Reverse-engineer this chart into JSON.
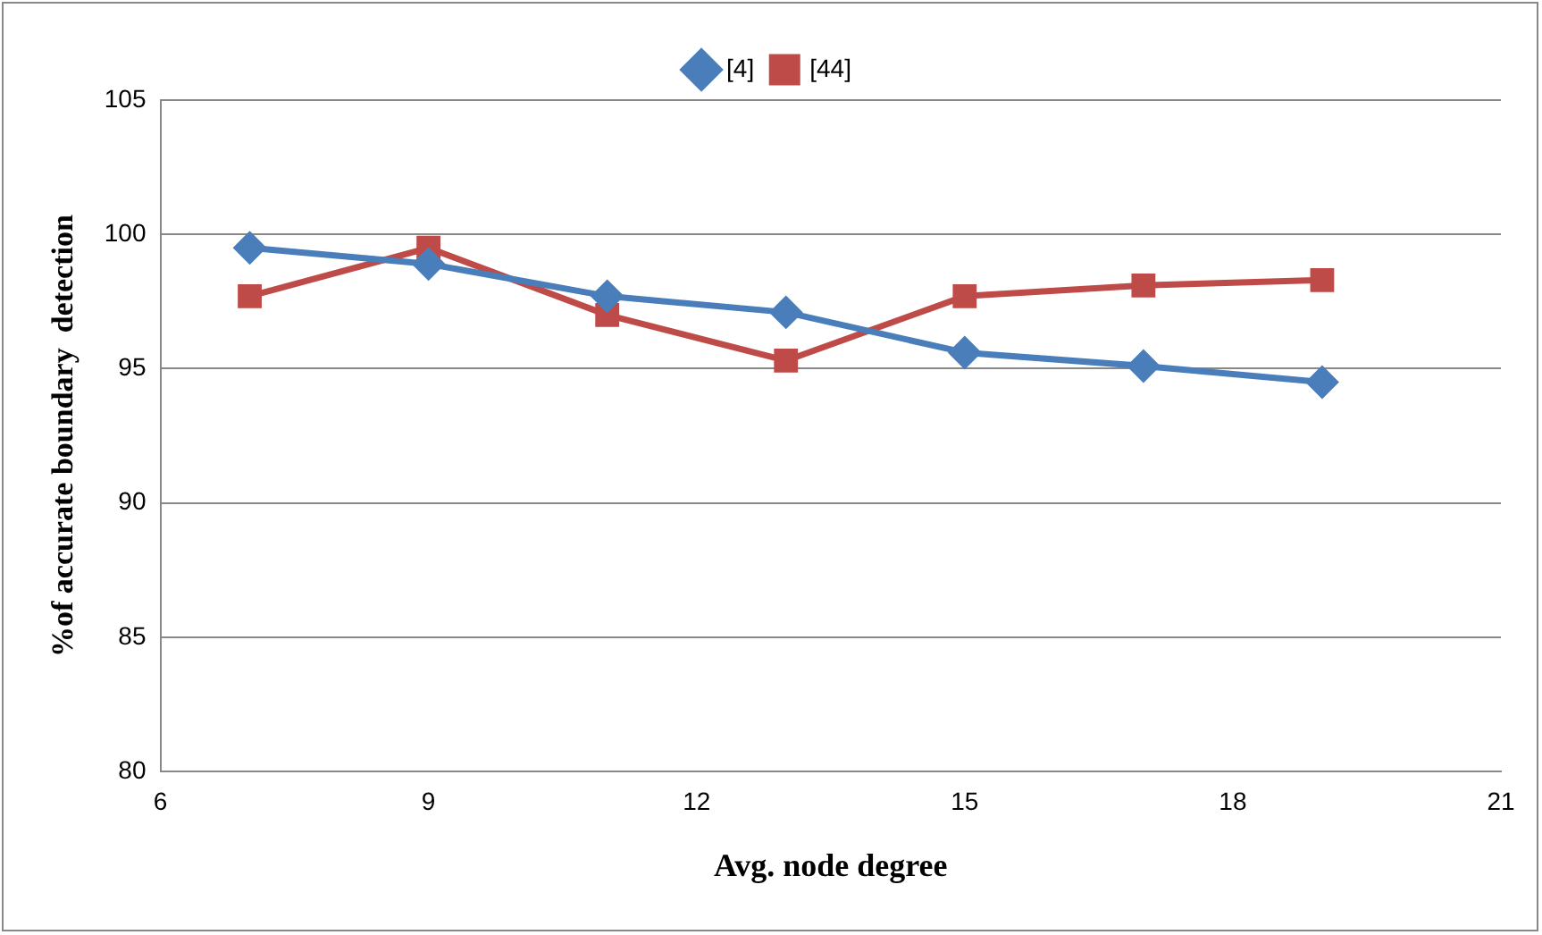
{
  "chart_data": {
    "type": "line",
    "xlabel": "Avg. node degree",
    "ylabel": "%of accurate boundary  detection",
    "x": [
      7,
      9,
      11,
      13,
      15,
      17,
      19
    ],
    "series": [
      {
        "name": "[4]",
        "color": "#4a7ebb",
        "marker": "diamond",
        "values": [
          99.5,
          98.9,
          97.7,
          97.1,
          95.6,
          95.1,
          94.5
        ]
      },
      {
        "name": "[44]",
        "color": "#be4b48",
        "marker": "square",
        "values": [
          97.7,
          99.5,
          97.0,
          95.3,
          97.7,
          98.1,
          98.3
        ]
      }
    ],
    "xlim": [
      6,
      21
    ],
    "xticks": [
      6,
      9,
      12,
      15,
      18,
      21
    ],
    "ylim": [
      80,
      105
    ],
    "yticks": [
      80,
      85,
      90,
      95,
      100,
      105
    ],
    "grid": "y",
    "legend": "top",
    "line_style": "solid"
  }
}
